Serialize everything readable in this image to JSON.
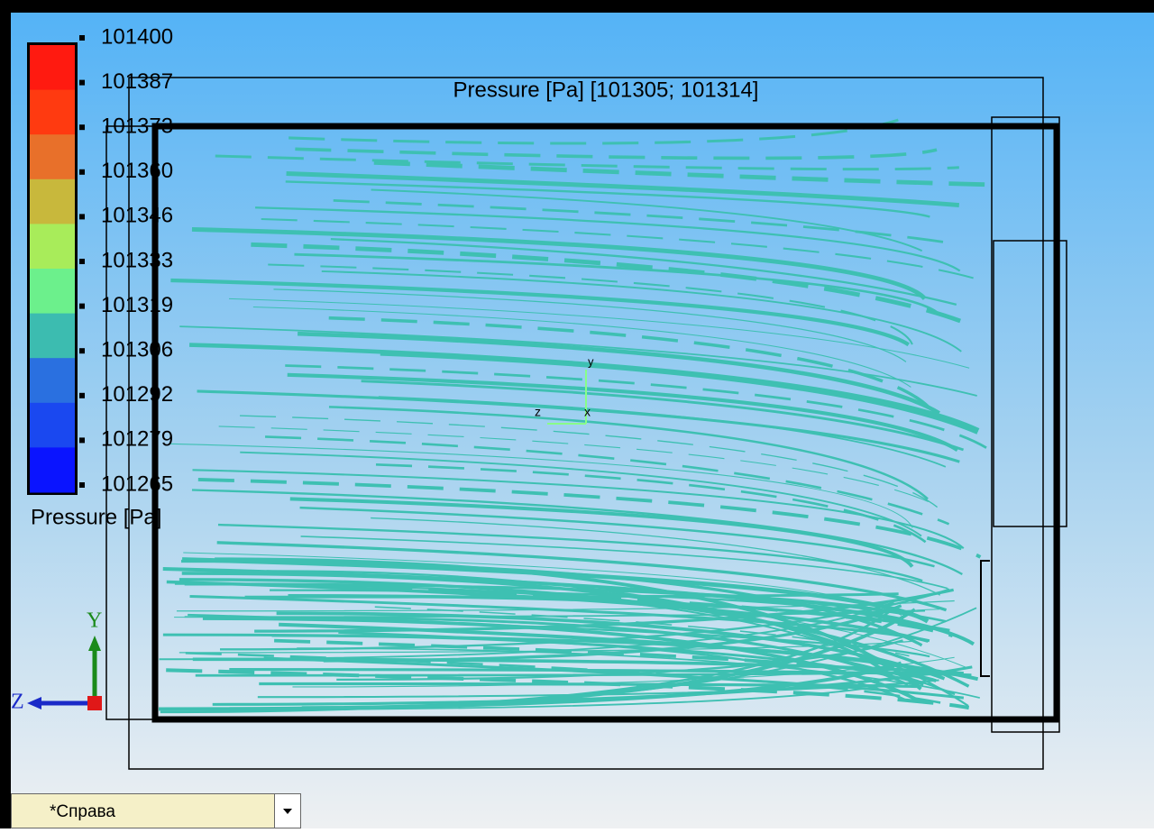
{
  "view_title": "Pressure [Pa] [101305; 101314]",
  "legend": {
    "title": "Pressure [Pa]",
    "ticks": [
      101400,
      101387,
      101373,
      101360,
      101346,
      101333,
      101319,
      101306,
      101292,
      101279,
      101265
    ],
    "colors": [
      "#ff1a10",
      "#ff3a10",
      "#e8702a",
      "#c8b83c",
      "#a8ec5a",
      "#6cf08c",
      "#3cbcb0",
      "#2a70e0",
      "#1a48f0",
      "#0a14ff"
    ]
  },
  "triad": {
    "y": "y",
    "z": "z",
    "x": "x"
  },
  "axes": {
    "y": "Y",
    "z": "Z"
  },
  "view_selector": {
    "label": "*Справа"
  }
}
